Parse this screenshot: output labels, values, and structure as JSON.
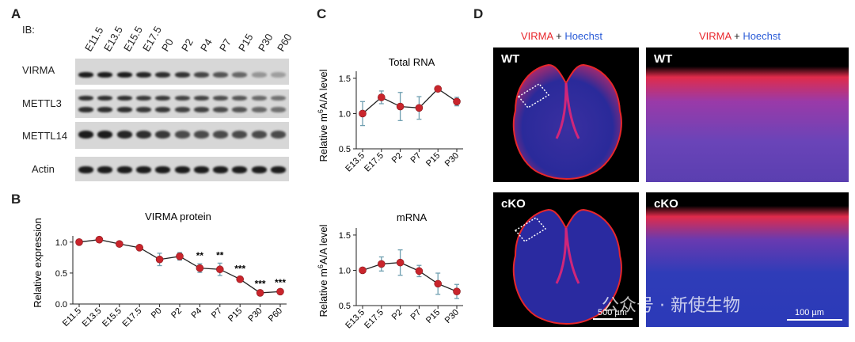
{
  "panel_letters": {
    "A": "A",
    "B": "B",
    "C": "C",
    "D": "D"
  },
  "panelA": {
    "ib_label": "IB:",
    "lanes": [
      "E11.5",
      "E13.5",
      "E15.5",
      "E17.5",
      "P0",
      "P2",
      "P4",
      "P7",
      "P15",
      "P30",
      "P60"
    ],
    "rows": [
      "VIRMA",
      "METTL3",
      "METTL14",
      "Actin"
    ],
    "intensity": {
      "VIRMA": [
        1,
        1,
        1,
        0.95,
        0.9,
        0.88,
        0.78,
        0.7,
        0.6,
        0.35,
        0.3
      ],
      "METTL3": [
        0.9,
        0.9,
        0.9,
        0.85,
        0.85,
        0.8,
        0.8,
        0.75,
        0.7,
        0.6,
        0.55
      ],
      "METTL14": [
        1,
        1,
        0.95,
        0.9,
        0.85,
        0.75,
        0.75,
        0.75,
        0.75,
        0.75,
        0.75
      ],
      "Actin": [
        1,
        1,
        1,
        1,
        1,
        1,
        1,
        1,
        1,
        1,
        1
      ]
    }
  },
  "chart_data": [
    {
      "type": "line",
      "title": "VIRMA protein",
      "ylabel": "Relative expression",
      "xlabel": "",
      "categories": [
        "E11.5",
        "E13.5",
        "E15.5",
        "E17.5",
        "P0",
        "P2",
        "P4",
        "P7",
        "P15",
        "P30",
        "P60"
      ],
      "values": [
        1.0,
        1.04,
        0.97,
        0.91,
        0.72,
        0.77,
        0.58,
        0.56,
        0.4,
        0.18,
        0.2
      ],
      "errors": [
        0.02,
        0.02,
        0.03,
        0.03,
        0.1,
        0.06,
        0.07,
        0.1,
        0.04,
        0.02,
        0.02
      ],
      "significance": [
        "",
        "",
        "",
        "",
        "",
        "",
        "**",
        "**",
        "***",
        "***",
        "***"
      ],
      "ylim": [
        0,
        1.1
      ],
      "yticks": [
        "0.0",
        "0.5",
        "1.0"
      ],
      "grid": false
    },
    {
      "type": "line",
      "title": "Total RNA",
      "ylabel": "Relative m6A/A level",
      "xlabel": "",
      "categories": [
        "E13.5",
        "E17.5",
        "P2",
        "P7",
        "P15",
        "P30"
      ],
      "values": [
        1.0,
        1.23,
        1.1,
        1.08,
        1.35,
        1.17
      ],
      "errors": [
        0.17,
        0.09,
        0.2,
        0.16,
        0.03,
        0.06
      ],
      "ylim": [
        0.5,
        1.6
      ],
      "yticks": [
        "0.5",
        "1.0",
        "1.5"
      ],
      "grid": false
    },
    {
      "type": "line",
      "title": "mRNA",
      "ylabel": "Relative m6A/A level",
      "xlabel": "",
      "categories": [
        "E13.5",
        "E17.5",
        "P2",
        "P7",
        "P15",
        "P30"
      ],
      "values": [
        1.0,
        1.09,
        1.11,
        0.99,
        0.81,
        0.7
      ],
      "errors": [
        0.03,
        0.1,
        0.18,
        0.08,
        0.15,
        0.1
      ],
      "ylim": [
        0.5,
        1.6
      ],
      "yticks": [
        "0.5",
        "1.0",
        "1.5"
      ],
      "grid": false
    }
  ],
  "panelD": {
    "header_red": "VIRMA",
    "header_plus": "+",
    "header_blue": "Hoechst",
    "row_labels": [
      "WT",
      "cKO"
    ],
    "scale_500": "500 µm",
    "scale_100": "100 µm",
    "watermark": "公众号 · 新使生物",
    "colors": {
      "red": "#e8262b",
      "blue": "#2a5bd7",
      "marker": "#c9252c",
      "errorbar": "#6f9fb0"
    }
  }
}
